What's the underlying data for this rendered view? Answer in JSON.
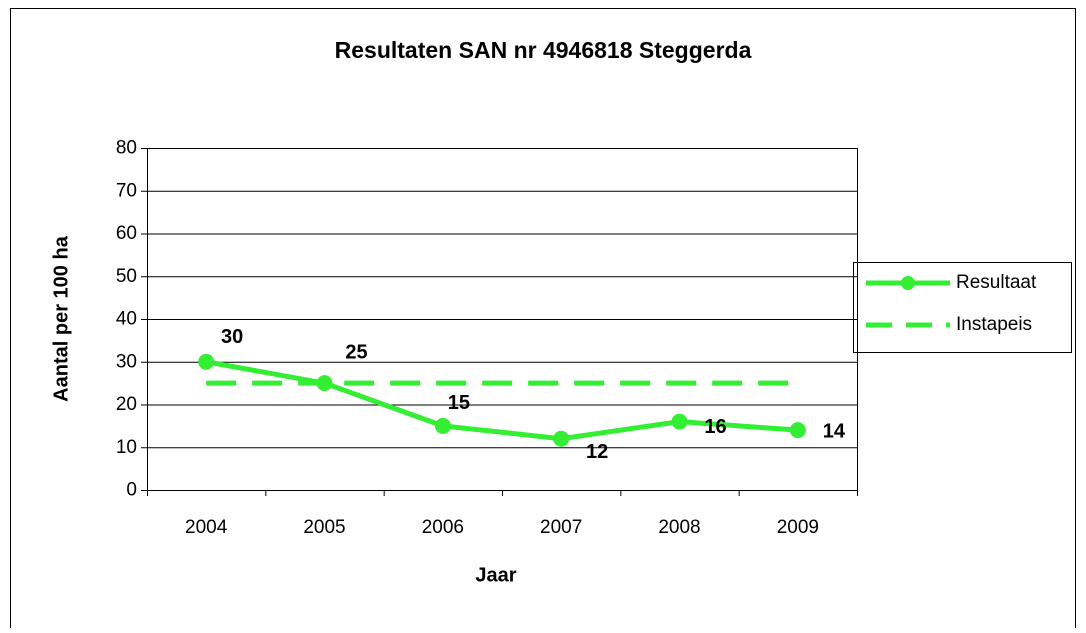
{
  "chart_data": {
    "type": "line",
    "title": "Resultaten SAN nr 4946818 Steggerda",
    "x_label": "Jaar",
    "y_label": "Aantal per 100 ha",
    "categories": [
      "2004",
      "2005",
      "2006",
      "2007",
      "2008",
      "2009"
    ],
    "series": [
      {
        "name": "Resultaat",
        "color": "#33ee33",
        "values": [
          30,
          25,
          15,
          12,
          16,
          14
        ],
        "markers": true,
        "data_labels": true
      },
      {
        "name": "Instapeis",
        "color": "#33ee33",
        "values": [
          25,
          25,
          25,
          25,
          25,
          25
        ],
        "dashed": true
      }
    ],
    "ylim": [
      0,
      80
    ],
    "yticks": [
      0,
      10,
      20,
      30,
      40,
      50,
      60,
      70,
      80
    ],
    "grid": true,
    "legend": "right"
  }
}
